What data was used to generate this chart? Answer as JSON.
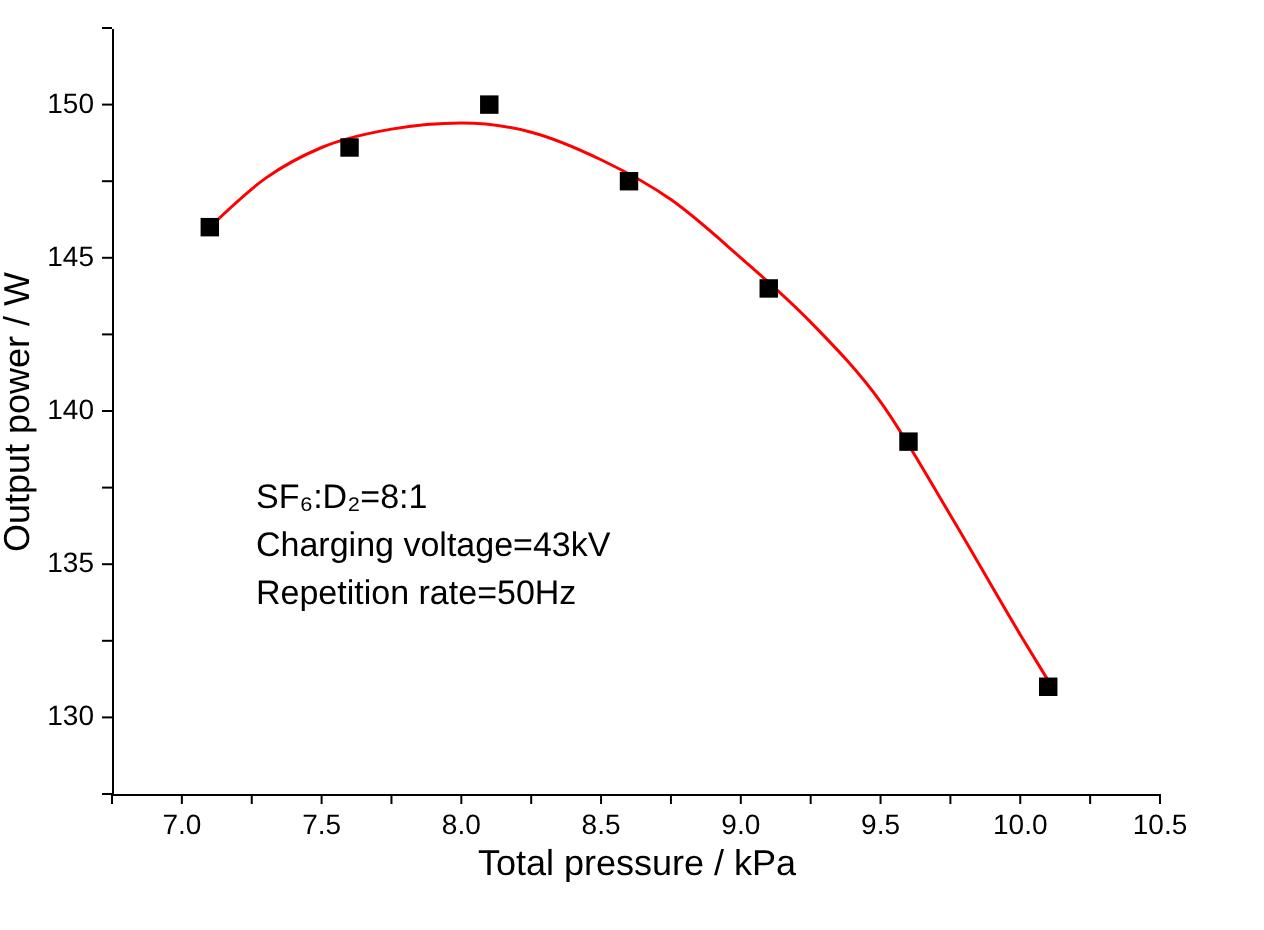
{
  "chart_data": {
    "type": "scatter",
    "xlabel": "Total pressure / kPa",
    "ylabel": "Output power / W",
    "xlim": [
      6.75,
      10.5
    ],
    "ylim": [
      127.5,
      152.5
    ],
    "xticks": [
      {
        "value": 6.75,
        "label": null
      },
      {
        "value": 7,
        "label": "7.0"
      },
      {
        "value": 7.25,
        "label": null
      },
      {
        "value": 7.5,
        "label": "7.5"
      },
      {
        "value": 7.75,
        "label": null
      },
      {
        "value": 8,
        "label": "8.0"
      },
      {
        "value": 8.25,
        "label": null
      },
      {
        "value": 8.5,
        "label": "8.5"
      },
      {
        "value": 8.75,
        "label": null
      },
      {
        "value": 9,
        "label": "9.0"
      },
      {
        "value": 9.25,
        "label": null
      },
      {
        "value": 9.5,
        "label": "9.5"
      },
      {
        "value": 9.75,
        "label": null
      },
      {
        "value": 10,
        "label": "10.0"
      },
      {
        "value": 10.25,
        "label": null
      },
      {
        "value": 10.5,
        "label": "10.5"
      }
    ],
    "yticks": [
      {
        "value": 127.5,
        "label": null
      },
      130,
      {
        "value": 132.5,
        "label": null
      },
      135,
      {
        "value": 137.5,
        "label": null
      },
      140,
      {
        "value": 142.5,
        "label": null
      },
      145,
      {
        "value": 147.5,
        "label": null
      },
      150,
      {
        "value": 152.5,
        "label": null
      }
    ],
    "grid": false,
    "legend": false,
    "annotations": [
      "SF₆:D₂=8:1",
      "Charging voltage=43kV",
      "Repetition rate=50Hz"
    ],
    "series": [
      {
        "type": "scatter",
        "marker": "square",
        "color": "#000000",
        "x": [
          7.1,
          7.6,
          8.1,
          8.6,
          9.1,
          9.6,
          10.1
        ],
        "values": [
          146.0,
          148.6,
          150.0,
          147.5,
          144.0,
          139.0,
          131.0
        ]
      },
      {
        "type": "line",
        "marker": "none",
        "line_style": "solid",
        "color": "#ff0000",
        "x": [
          7.1,
          7.3,
          7.5,
          7.75,
          8.0,
          8.25,
          8.5,
          8.75,
          9.0,
          9.25,
          9.5,
          9.75,
          10.0,
          10.1
        ],
        "values": [
          146.0,
          147.6,
          148.6,
          149.2,
          149.4,
          149.1,
          148.2,
          146.9,
          145.0,
          142.9,
          140.3,
          136.6,
          132.7,
          131.2
        ]
      }
    ]
  }
}
